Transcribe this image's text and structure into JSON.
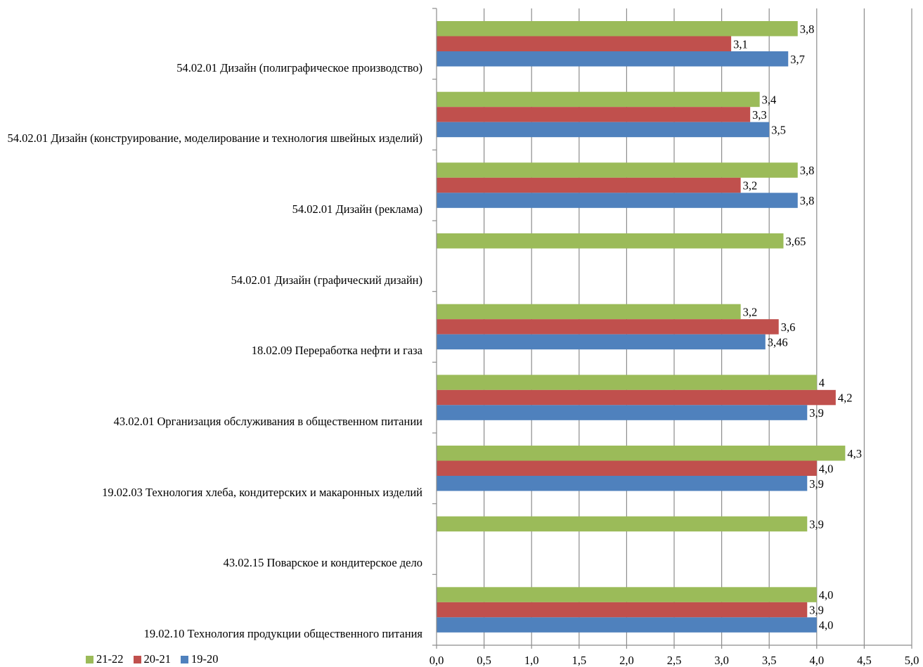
{
  "chart_data": {
    "type": "bar",
    "orientation": "horizontal",
    "xlim": [
      0,
      5
    ],
    "x_ticks": [
      "0,0",
      "0,5",
      "1,0",
      "1,5",
      "2,0",
      "2,5",
      "3,0",
      "3,5",
      "4,0",
      "4,5",
      "5,0"
    ],
    "grid": "vertical",
    "legend_position": "bottom-left",
    "categories": [
      "54.02.01 Дизайн (полиграфическое производство)",
      "54.02.01 Дизайн (конструирование, моделирование и технология швейных изделий)",
      "54.02.01 Дизайн (реклама)",
      "54.02.01 Дизайн (графический дизайн)",
      "18.02.09 Переработка нефти и газа",
      "43.02.01 Организация обслуживания в общественном питании",
      "19.02.03 Технология хлеба, кондитерских и макаронных изделий",
      "43.02.15 Поварское и кондитерское дело",
      "19.02.10 Технология продукции общественного питания"
    ],
    "series": [
      {
        "name": "21-22",
        "color": "#9BBB59",
        "values": [
          3.8,
          3.4,
          3.8,
          3.65,
          3.2,
          4.0,
          4.3,
          3.9,
          4.0
        ],
        "labels": [
          "3,8",
          "3,4",
          "3,8",
          "3,65",
          "3,2",
          "4",
          "4,3",
          "3,9",
          "4,0"
        ]
      },
      {
        "name": "20-21",
        "color": "#C0504D",
        "values": [
          3.1,
          3.3,
          3.2,
          null,
          3.6,
          4.2,
          4.0,
          null,
          3.9
        ],
        "labels": [
          "3,1",
          "3,3",
          "3,2",
          "",
          "3,6",
          "4,2",
          "4,0",
          "",
          "3,9"
        ]
      },
      {
        "name": "19-20",
        "color": "#4F81BD",
        "values": [
          3.7,
          3.5,
          3.8,
          null,
          3.46,
          3.9,
          3.9,
          null,
          4.0
        ],
        "labels": [
          "3,7",
          "3,5",
          "3,8",
          "",
          "3,46",
          "3,9",
          "3,9",
          "",
          "4,0"
        ]
      }
    ]
  }
}
